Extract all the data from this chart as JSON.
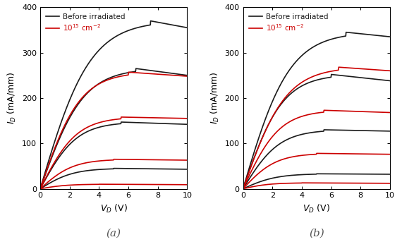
{
  "panel_a": {
    "black_curves": [
      {
        "Vpeak": 7.5,
        "Ipeak": 370,
        "Iend": 355,
        "Vknee": 2.5
      },
      {
        "Vpeak": 6.5,
        "Ipeak": 265,
        "Iend": 250,
        "Vknee": 2.5
      },
      {
        "Vpeak": 5.5,
        "Ipeak": 147,
        "Iend": 142,
        "Vknee": 2.5
      },
      {
        "Vpeak": 5.0,
        "Ipeak": 45,
        "Iend": 43,
        "Vknee": 2.5
      }
    ],
    "red_curves": [
      {
        "Vpeak": 6.0,
        "Ipeak": 257,
        "Iend": 248,
        "Vknee": 2.0
      },
      {
        "Vpeak": 5.5,
        "Ipeak": 158,
        "Iend": 155,
        "Vknee": 2.0
      },
      {
        "Vpeak": 5.0,
        "Ipeak": 65,
        "Iend": 63,
        "Vknee": 2.0
      },
      {
        "Vpeak": 4.0,
        "Ipeak": 10,
        "Iend": 9,
        "Vknee": 2.0
      }
    ]
  },
  "panel_b": {
    "black_curves": [
      {
        "Vpeak": 7.0,
        "Ipeak": 345,
        "Iend": 335,
        "Vknee": 2.0
      },
      {
        "Vpeak": 6.0,
        "Ipeak": 252,
        "Iend": 238,
        "Vknee": 2.0
      },
      {
        "Vpeak": 5.5,
        "Ipeak": 130,
        "Iend": 127,
        "Vknee": 2.0
      },
      {
        "Vpeak": 5.0,
        "Ipeak": 33,
        "Iend": 32,
        "Vknee": 2.0
      }
    ],
    "red_curves": [
      {
        "Vpeak": 6.5,
        "Ipeak": 268,
        "Iend": 260,
        "Vknee": 2.0
      },
      {
        "Vpeak": 5.5,
        "Ipeak": 173,
        "Iend": 168,
        "Vknee": 2.0
      },
      {
        "Vpeak": 5.0,
        "Ipeak": 78,
        "Iend": 76,
        "Vknee": 2.0
      },
      {
        "Vpeak": 4.0,
        "Ipeak": 13,
        "Iend": 12,
        "Vknee": 2.0
      }
    ]
  },
  "xlabel": "$V_D$ (V)",
  "ylabel": "$I_D$ (mA/mm)",
  "xlim": [
    0,
    10
  ],
  "ylim": [
    0,
    400
  ],
  "yticks": [
    0,
    100,
    200,
    300,
    400
  ],
  "xticks": [
    0,
    2,
    4,
    6,
    8,
    10
  ],
  "legend_black": "Before irradiated",
  "legend_red": "$10^{15}$ cm$^{-2}$",
  "label_a": "(a)",
  "label_b": "(b)",
  "black_color": "#1a1a1a",
  "red_color": "#cc0000",
  "bg_color": "#ffffff",
  "linewidth": 1.2
}
